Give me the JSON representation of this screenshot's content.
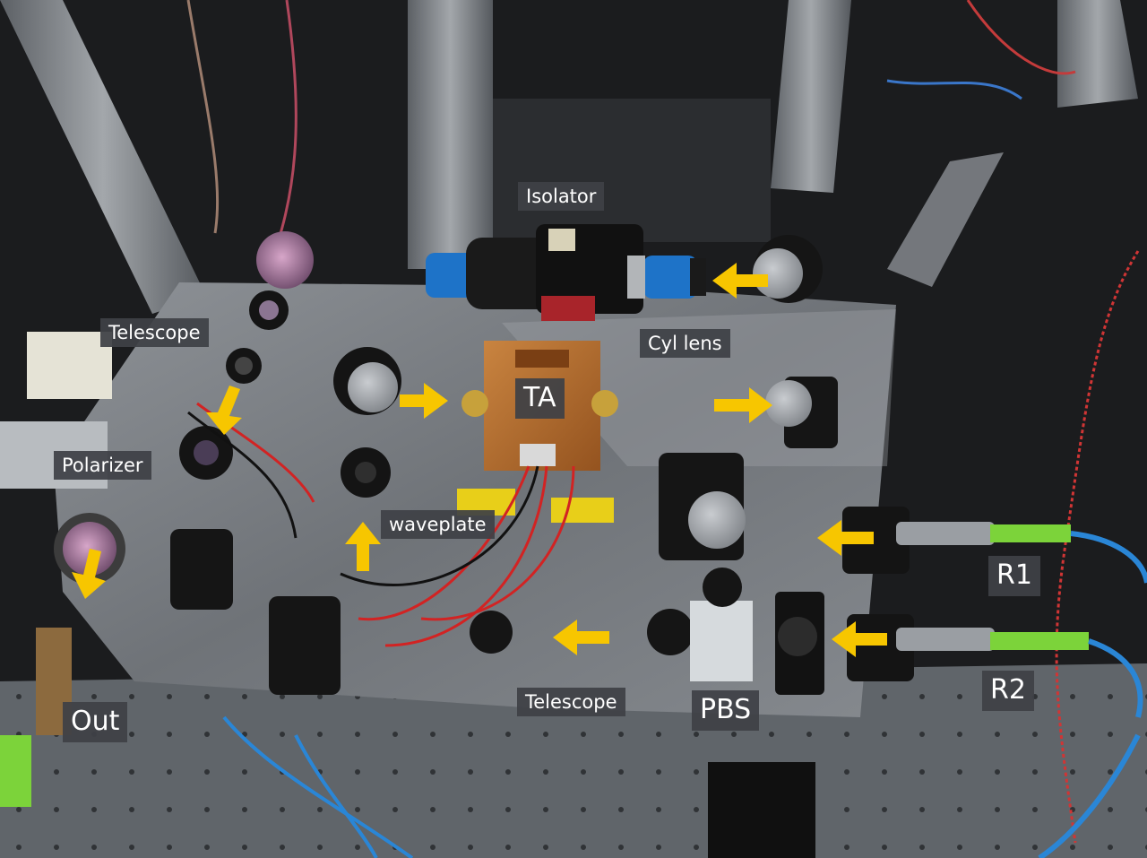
{
  "labels": {
    "isolator": "Isolator",
    "cyl_lens": "Cyl lens",
    "telescope_top": "Telescope",
    "ta": "TA",
    "polarizer": "Polarizer",
    "waveplate": "waveplate",
    "telescope_bottom": "Telescope",
    "pbs": "PBS",
    "r1": "R1",
    "r2": "R2",
    "out": "Out"
  },
  "arrows": [
    {
      "name": "arrow-to-isolator",
      "direction": "left"
    },
    {
      "name": "arrow-to-ta",
      "direction": "right"
    },
    {
      "name": "arrow-to-cyl-lens-mirror",
      "direction": "right"
    },
    {
      "name": "arrow-telescope-down",
      "direction": "down"
    },
    {
      "name": "arrow-out-down",
      "direction": "down-left"
    },
    {
      "name": "arrow-waveplate-up",
      "direction": "up"
    },
    {
      "name": "arrow-from-r1",
      "direction": "left"
    },
    {
      "name": "arrow-from-r2",
      "direction": "left"
    },
    {
      "name": "arrow-to-telescope-bottom",
      "direction": "left"
    }
  ],
  "colors": {
    "arrow": "#f7c600",
    "label_bg": "#3e4146",
    "label_text": "#ffffff",
    "breadboard": "#7c8085",
    "copper": "#b86e30",
    "fiber_jacket": "#7cd33a",
    "fiber_cable": "#2a86d6"
  }
}
